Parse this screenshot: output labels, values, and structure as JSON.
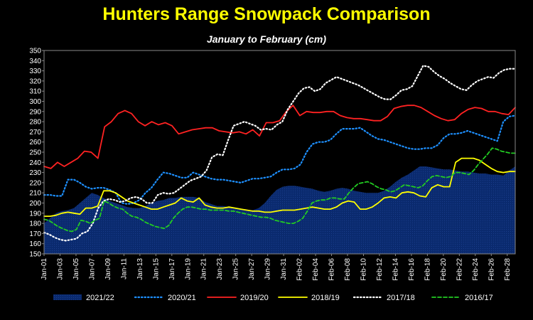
{
  "chart_data": {
    "type": "area",
    "title": "Hunters Range Snowpack Comparison",
    "subtitle": "January to February  (cm)",
    "xlabel": "",
    "ylabel": "",
    "ylim": [
      150,
      350
    ],
    "ytick_step": 10,
    "grid": false,
    "legend_position": "bottom",
    "x_tick_labels": [
      "Jan-01",
      "Jan-03",
      "Jan-05",
      "Jan-07",
      "Jan-09",
      "Jan-11",
      "Jan-13",
      "Jan-15",
      "Jan-17",
      "Jan-19",
      "Jan-21",
      "Jan-23",
      "Jan-25",
      "Jan-27",
      "Jan-29",
      "Jan-31",
      "Feb-02",
      "Feb-04",
      "Feb-06",
      "Feb-08",
      "Feb-10",
      "Feb-12",
      "Feb-14",
      "Feb-16",
      "Feb-18",
      "Feb-20",
      "Feb-22",
      "Feb-24",
      "Feb-26",
      "Feb-28"
    ],
    "series": [
      {
        "name": "2021/22",
        "style": "area",
        "color": "#0a2a6e",
        "values": [
          180,
          185,
          190,
          192,
          193,
          195,
          200,
          205,
          210,
          208,
          205,
          202,
          200,
          198,
          196,
          195,
          195,
          197,
          200,
          202,
          203,
          205,
          205,
          206,
          206,
          206,
          205,
          201,
          199,
          197,
          197,
          196,
          195,
          194,
          193,
          193,
          195,
          200,
          207,
          213,
          216,
          217,
          217,
          216,
          215,
          214,
          212,
          211,
          212,
          214,
          215,
          214,
          212,
          211,
          210,
          210,
          210,
          212,
          216,
          221,
          225,
          228,
          232,
          236,
          236,
          235,
          234,
          233,
          233,
          232,
          231,
          231,
          230,
          229,
          229,
          228,
          228,
          227,
          232,
          236
        ]
      },
      {
        "name": "2020/21",
        "style": "dotted",
        "color": "#1e90ff",
        "values": [
          208,
          208,
          207,
          207,
          223,
          223,
          220,
          216,
          214,
          215,
          215,
          213,
          210,
          200,
          199,
          200,
          203,
          210,
          215,
          223,
          230,
          229,
          227,
          225,
          225,
          230,
          228,
          226,
          224,
          223,
          223,
          222,
          221,
          220,
          222,
          224,
          224,
          225,
          226,
          230,
          233,
          233,
          234,
          238,
          250,
          258,
          260,
          260,
          262,
          268,
          273,
          273,
          273,
          274,
          270,
          266,
          263,
          262,
          260,
          258,
          256,
          254,
          253,
          253,
          254,
          254,
          257,
          264,
          268,
          268,
          269,
          271,
          269,
          267,
          265,
          263,
          261,
          280,
          285,
          286
        ]
      },
      {
        "name": "2019/20",
        "style": "solid",
        "color": "#ff2222",
        "values": [
          236,
          234,
          240,
          236,
          240,
          244,
          251,
          250,
          244,
          275,
          280,
          288,
          291,
          288,
          280,
          276,
          280,
          277,
          279,
          276,
          268,
          270,
          272,
          273,
          274,
          274,
          271,
          270,
          269,
          270,
          268,
          272,
          266,
          279,
          279,
          281,
          290,
          296,
          286,
          290,
          289,
          289,
          290,
          290,
          286,
          284,
          283,
          283,
          282,
          281,
          281,
          285,
          293,
          295,
          296,
          296,
          294,
          290,
          286,
          283,
          281,
          282,
          288,
          292,
          294,
          293,
          290,
          290,
          288,
          287,
          294
        ]
      },
      {
        "name": "2018/19",
        "style": "solid",
        "color": "#ffff00",
        "values": [
          187,
          187,
          188,
          190,
          191,
          190,
          189,
          195,
          195,
          197,
          212,
          212,
          210,
          206,
          202,
          200,
          198,
          196,
          194,
          194,
          196,
          198,
          200,
          205,
          202,
          201,
          205,
          198,
          196,
          195,
          195,
          196,
          195,
          194,
          193,
          192,
          192,
          191,
          191,
          192,
          193,
          193,
          193,
          194,
          195,
          196,
          195,
          194,
          194,
          196,
          200,
          202,
          201,
          194,
          194,
          196,
          200,
          205,
          206,
          205,
          210,
          211,
          210,
          207,
          206,
          215,
          218,
          216,
          216,
          240,
          244,
          244,
          244,
          242,
          238,
          234,
          231,
          230,
          231,
          231
        ]
      },
      {
        "name": "2017/18",
        "style": "dotted",
        "color": "#ffffff",
        "values": [
          171,
          169,
          166,
          164,
          163,
          164,
          165,
          170,
          172,
          180,
          195,
          202,
          204,
          203,
          201,
          202,
          205,
          206,
          204,
          200,
          200,
          208,
          210,
          209,
          210,
          214,
          218,
          222,
          224,
          226,
          232,
          245,
          248,
          247,
          262,
          276,
          278,
          280,
          278,
          276,
          272,
          273,
          272,
          277,
          280,
          292,
          300,
          308,
          313,
          314,
          310,
          312,
          318,
          321,
          324,
          322,
          320,
          318,
          316,
          313,
          310,
          307,
          304,
          302,
          302,
          306,
          311,
          312,
          315,
          325,
          335,
          334,
          329,
          325,
          322,
          318,
          315,
          312,
          311,
          316,
          320,
          322,
          324,
          323,
          328,
          331,
          332,
          332
        ]
      },
      {
        "name": "2016/17",
        "style": "dashed",
        "color": "#22cc22",
        "values": [
          184,
          183,
          180,
          177,
          175,
          173,
          172,
          174,
          183,
          182,
          180,
          183,
          185,
          202,
          200,
          197,
          195,
          194,
          190,
          187,
          186,
          184,
          181,
          179,
          177,
          176,
          175,
          178,
          185,
          190,
          194,
          196,
          196,
          195,
          194,
          194,
          193,
          193,
          193,
          193,
          192,
          192,
          191,
          190,
          189,
          188,
          187,
          186,
          186,
          185,
          183,
          182,
          181,
          180,
          180,
          182,
          185,
          192,
          200,
          202,
          203,
          203,
          205,
          205,
          204,
          204,
          210,
          215,
          219,
          220,
          221,
          219,
          216,
          214,
          213,
          211,
          212,
          215,
          218,
          217,
          216,
          215,
          217,
          222,
          226,
          227,
          226,
          225,
          226,
          230,
          230,
          229,
          228,
          232,
          238,
          243,
          248,
          254,
          253,
          251,
          250,
          249,
          249
        ]
      }
    ]
  }
}
